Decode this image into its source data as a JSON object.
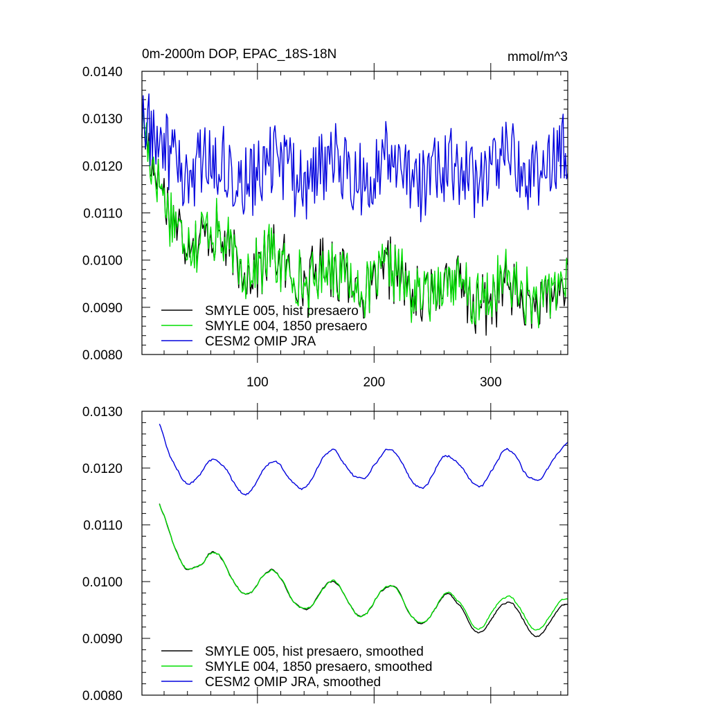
{
  "chart_data": [
    {
      "type": "line",
      "title": "0m-2000m DOP, EPAC_18S-18N",
      "units": "mmol/m^3",
      "xlim": [
        1,
        366
      ],
      "ylim": [
        0.008,
        0.014
      ],
      "yticks": [
        "0.0080",
        "0.0090",
        "0.0100",
        "0.0110",
        "0.0120",
        "0.0130",
        "0.0140"
      ],
      "xticks": [
        "100",
        "200",
        "300"
      ],
      "legend_position": "bottom-left",
      "series": [
        {
          "name": "SMYLE 005, hist presaero",
          "color": "#000000"
        },
        {
          "name": "SMYLE 004, 1850 presaero",
          "color": "#00dd00"
        },
        {
          "name": "CESM2 OMIP JRA",
          "color": "#0000dd"
        }
      ],
      "trend": {
        "x": [
          1,
          10,
          25,
          50,
          100,
          150,
          200,
          250,
          300,
          366
        ],
        "blue": [
          0.0129,
          0.0124,
          0.0122,
          0.012,
          0.0118,
          0.0119,
          0.012,
          0.0118,
          0.0119,
          0.0121
        ],
        "green": [
          0.013,
          0.0118,
          0.011,
          0.0105,
          0.0099,
          0.0097,
          0.0096,
          0.0094,
          0.0093,
          0.0093
        ],
        "black": [
          0.013,
          0.0118,
          0.011,
          0.0105,
          0.0099,
          0.0097,
          0.0096,
          0.0094,
          0.0092,
          0.0092
        ]
      },
      "noise_amplitude": 0.0006
    },
    {
      "type": "line",
      "xlim": [
        1,
        366
      ],
      "ylim": [
        0.008,
        0.013
      ],
      "yticks": [
        "0.0080",
        "0.0090",
        "0.0100",
        "0.0110",
        "0.0120",
        "0.0130"
      ],
      "legend_position": "bottom-left",
      "series": [
        {
          "name": "SMYLE 005, hist presaero, smoothed",
          "color": "#000000"
        },
        {
          "name": "SMYLE 004, 1850 presaero, smoothed",
          "color": "#00dd00"
        },
        {
          "name": "CESM2 OMIP JRA, smoothed",
          "color": "#0000dd"
        }
      ],
      "trend": {
        "x": [
          1,
          10,
          25,
          50,
          100,
          150,
          200,
          250,
          300,
          366
        ],
        "blue": [
          0.0129,
          0.0127,
          0.0122,
          0.0119,
          0.0118,
          0.012,
          0.0121,
          0.0119,
          0.012,
          0.0121
        ],
        "green": [
          0.0119,
          0.0113,
          0.0108,
          0.0103,
          0.01,
          0.0097,
          0.0097,
          0.0095,
          0.0095,
          0.0094
        ],
        "black": [
          0.0119,
          0.0113,
          0.0108,
          0.0103,
          0.01,
          0.0097,
          0.0097,
          0.0095,
          0.0094,
          0.0093
        ]
      },
      "noise_amplitude": 0.0003
    }
  ]
}
